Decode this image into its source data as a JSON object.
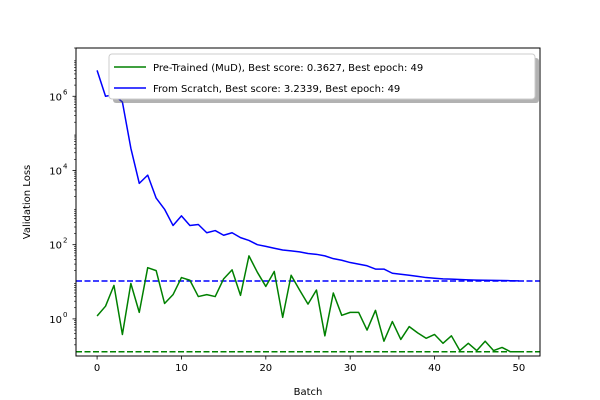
{
  "chart_data": {
    "type": "line",
    "xlabel": "Batch",
    "ylabel": "Validation Loss",
    "yscale": "log",
    "xlim": [
      -2.5,
      52.5
    ],
    "ylim": [
      0.1,
      20000000
    ],
    "xticks": [
      0,
      10,
      20,
      30,
      40,
      50
    ],
    "xtick_labels": [
      "0",
      "10",
      "20",
      "30",
      "40",
      "50"
    ],
    "yticks": [
      1,
      100,
      10000,
      1000000
    ],
    "ytick_labels": [
      "10",
      "10",
      "10",
      "10"
    ],
    "ytick_exponents": [
      "0",
      "2",
      "4",
      "6"
    ],
    "legend_placement": "top-right",
    "series": [
      {
        "name": "Pre-Trained (MuD), Best score: 0.3627, Best epoch: 49",
        "color": "#008000",
        "x": [
          0,
          1,
          2,
          3,
          4,
          5,
          6,
          7,
          8,
          9,
          10,
          11,
          12,
          13,
          14,
          15,
          16,
          17,
          18,
          19,
          20,
          21,
          22,
          23,
          24,
          25,
          26,
          27,
          28,
          29,
          30,
          31,
          32,
          33,
          34,
          35,
          36,
          37,
          38,
          39,
          40,
          41,
          42,
          43,
          44,
          45,
          46,
          47,
          48,
          49,
          50
        ],
        "values": [
          1.2,
          2.2,
          8,
          0.38,
          9,
          1.5,
          24,
          20,
          2.6,
          4.5,
          13,
          11,
          4,
          4.5,
          4,
          12,
          21,
          4.3,
          50,
          18,
          7.5,
          19,
          1.1,
          15,
          6,
          2.5,
          6,
          0.35,
          5,
          1.25,
          1.5,
          1.5,
          0.5,
          1.7,
          0.25,
          0.85,
          0.28,
          0.62,
          0.42,
          0.3,
          0.38,
          0.22,
          0.35,
          0.14,
          0.22,
          0.14,
          0.25,
          0.14,
          0.17,
          0.13,
          0.13
        ],
        "best_line": 0.13
      },
      {
        "name": "From Scratch, Best score: 3.2339, Best epoch: 49",
        "color": "#0000ff",
        "x": [
          0,
          1,
          2,
          3,
          4,
          5,
          6,
          7,
          8,
          9,
          10,
          11,
          12,
          13,
          14,
          15,
          16,
          17,
          18,
          19,
          20,
          21,
          22,
          23,
          24,
          25,
          26,
          27,
          28,
          29,
          30,
          31,
          32,
          33,
          34,
          35,
          36,
          37,
          38,
          39,
          40,
          41,
          42,
          43,
          44,
          45,
          46,
          47,
          48,
          49,
          50
        ],
        "values": [
          5000000,
          1000000,
          1100000,
          700000,
          40000,
          4500,
          7500,
          1800,
          900,
          330,
          600,
          330,
          350,
          210,
          240,
          180,
          210,
          155,
          130,
          100,
          90,
          80,
          72,
          68,
          64,
          58,
          55,
          50,
          42,
          38,
          33,
          30,
          27,
          22,
          22,
          17,
          16,
          15,
          14,
          13,
          12.5,
          12,
          11.8,
          11.5,
          11.3,
          11.1,
          11,
          10.9,
          10.8,
          10.7,
          10.6
        ],
        "best_line": 10.5
      }
    ]
  }
}
